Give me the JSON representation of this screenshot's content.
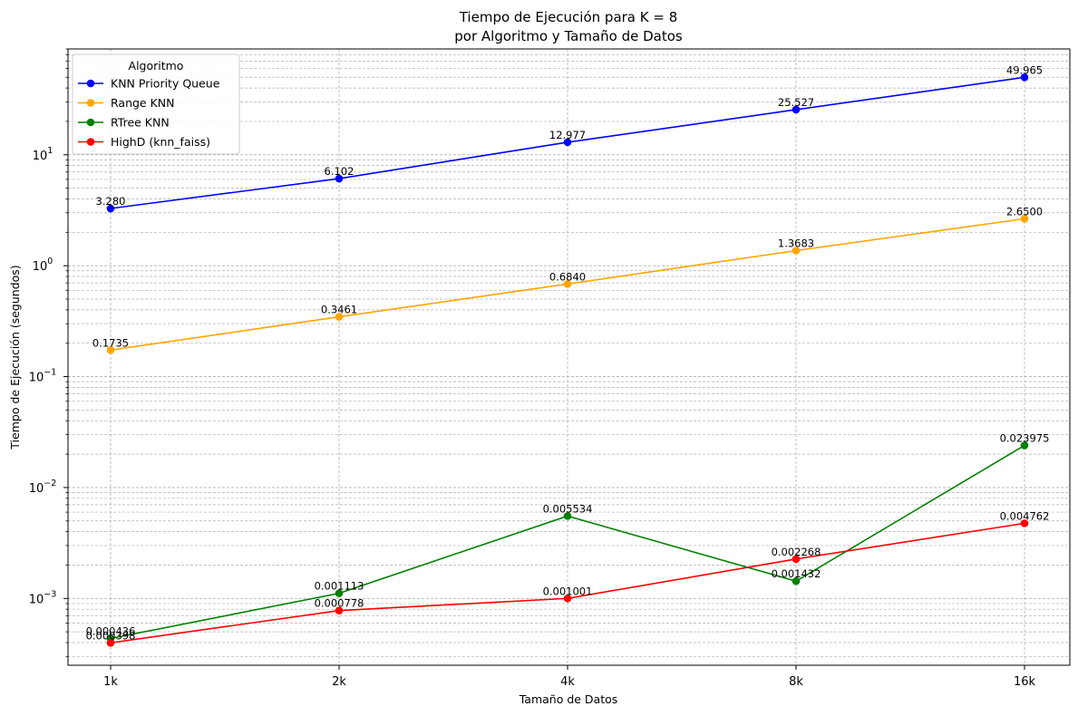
{
  "chart_data": {
    "type": "line",
    "title_line1": "Tiempo de Ejecución para K = 8",
    "title_line2": "por Algoritmo y Tamaño de Datos",
    "xlabel": "Tamaño de Datos",
    "ylabel": "Tiempo de Ejecución (segundos)",
    "categories": [
      "1k",
      "2k",
      "4k",
      "8k",
      "16k"
    ],
    "y_scale": "log",
    "ylim": [
      0.00025,
      90
    ],
    "y_ticks": [
      {
        "value": 0.001,
        "base": "10",
        "exp": "−3"
      },
      {
        "value": 0.01,
        "base": "10",
        "exp": "−2"
      },
      {
        "value": 0.1,
        "base": "10",
        "exp": "−1"
      },
      {
        "value": 1,
        "base": "10",
        "exp": "0"
      },
      {
        "value": 10,
        "base": "10",
        "exp": "1"
      }
    ],
    "grid": true,
    "legend": {
      "title": "Algoritmo",
      "placement": "top-left"
    },
    "series": [
      {
        "name": "KNN Priority Queue",
        "color": "#0000ff",
        "values": [
          3.28,
          6.102,
          12.977,
          25.527,
          49.965
        ],
        "labels": [
          "3.280",
          "6.102",
          "12.977",
          "25.527",
          "49.965"
        ]
      },
      {
        "name": "Range KNN",
        "color": "#ffa500",
        "values": [
          0.1735,
          0.3461,
          0.684,
          1.3683,
          2.65
        ],
        "labels": [
          "0.1735",
          "0.3461",
          "0.6840",
          "1.3683",
          "2.6500"
        ]
      },
      {
        "name": "RTree KNN",
        "color": "#008000",
        "values": [
          0.000436,
          0.001113,
          0.005534,
          0.001432,
          0.023975
        ],
        "labels": [
          "0.000436",
          "0.001113",
          "0.005534",
          "0.001432",
          "0.023975"
        ]
      },
      {
        "name": "HighD (knn_faiss)",
        "color": "#ff0000",
        "values": [
          0.000398,
          0.000778,
          0.001001,
          0.002268,
          0.004762
        ],
        "labels": [
          "0.000398",
          "0.000778",
          "0.001001",
          "0.002268",
          "0.004762"
        ]
      }
    ]
  }
}
